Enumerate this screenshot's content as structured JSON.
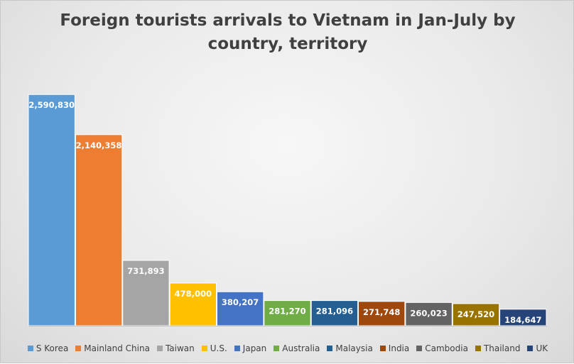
{
  "chart_data": {
    "type": "bar",
    "title": "Foreign tourists arrivals to Vietnam in Jan-July by country, territory",
    "categories": [
      "S Korea",
      "Mainland China",
      "Taiwan",
      "U.S.",
      "Japan",
      "Australia",
      "Malaysia",
      "India",
      "Cambodia",
      "Thailand",
      "UK"
    ],
    "values": [
      2590830,
      2140358,
      731893,
      478000,
      380207,
      281270,
      281096,
      271748,
      260023,
      247520,
      184647
    ],
    "value_labels": [
      "2,590,830",
      "2,140,358",
      "731,893",
      "478,000",
      "380,207",
      "281,270",
      "281,096",
      "271,748",
      "260,023",
      "247,520",
      "184,647"
    ],
    "colors": [
      "#5b9bd5",
      "#ed7d31",
      "#a5a5a5",
      "#ffc000",
      "#4472c4",
      "#70ad47",
      "#255e91",
      "#9e480e",
      "#636363",
      "#997300",
      "#264478"
    ],
    "label_color": "#ffffff",
    "ylim": [
      0,
      2600000
    ],
    "grid": false,
    "legend_position": "bottom"
  }
}
